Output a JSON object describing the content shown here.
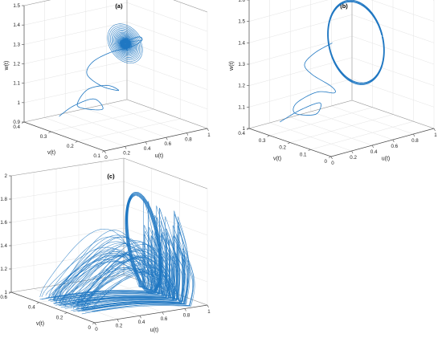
{
  "figure": {
    "line_color": "#1f77c2"
  },
  "chart_data": [
    {
      "id": "a",
      "title": "(a)",
      "type": "line",
      "projection": "3d",
      "xlabel": "u(t)",
      "ylabel": "v(t)",
      "zlabel": "w(t)",
      "xlim": [
        0,
        1
      ],
      "ylim": [
        0.1,
        0.4
      ],
      "zlim": [
        0.9,
        1.5
      ],
      "xticks": [
        "0",
        "0.2",
        "0.4",
        "0.6",
        "0.8",
        "1"
      ],
      "yticks": [
        "0.1",
        "0.2",
        "0.3",
        "0.4"
      ],
      "zticks": [
        "0.9",
        "1",
        "1.1",
        "1.2",
        "1.3",
        "1.4",
        "1.5"
      ],
      "xtick_values": [
        0,
        0.2,
        0.4,
        0.6,
        0.8,
        1
      ],
      "ytick_values": [
        0.1,
        0.2,
        0.3,
        0.4
      ],
      "ztick_values": [
        0.9,
        1,
        1.1,
        1.2,
        1.3,
        1.4,
        1.5
      ],
      "grid": true,
      "behavior": "spiral to fixed point",
      "fixed_point": {
        "u": 0.62,
        "v": 0.26,
        "w": 1.3
      },
      "series": [
        {
          "u": [
            0.08,
            0.25,
            0.42,
            0.4,
            0.2,
            0.1,
            0.28,
            0.5,
            0.58,
            0.42,
            0.3,
            0.38,
            0.56,
            0.7,
            0.78,
            0.72,
            0.6
          ],
          "v": [
            0.3,
            0.31,
            0.3,
            0.26,
            0.25,
            0.24,
            0.27,
            0.28,
            0.27,
            0.27,
            0.28,
            0.29,
            0.29,
            0.27,
            0.26,
            0.25,
            0.26
          ],
          "w": [
            0.97,
            1.0,
            1.02,
            0.99,
            1.02,
            1.06,
            1.1,
            1.09,
            1.06,
            1.1,
            1.17,
            1.22,
            1.25,
            1.27,
            1.3,
            1.33,
            1.31
          ]
        }
      ]
    },
    {
      "id": "b",
      "title": "(b)",
      "type": "line",
      "projection": "3d",
      "xlabel": "u(t)",
      "ylabel": "v(t)",
      "zlabel": "w(t)",
      "xlim": [
        0,
        1
      ],
      "ylim": [
        0,
        0.4
      ],
      "zlim": [
        1,
        1.6
      ],
      "xticks": [
        "0",
        "0.2",
        "0.4",
        "0.6",
        "0.8",
        "1"
      ],
      "yticks": [
        "0",
        "0.1",
        "0.2",
        "0.3",
        "0.4"
      ],
      "zticks": [
        "1",
        "1.1",
        "1.2",
        "1.3",
        "1.4",
        "1.5",
        "1.6"
      ],
      "xtick_values": [
        0,
        0.2,
        0.4,
        0.6,
        0.8,
        1
      ],
      "ytick_values": [
        0,
        0.1,
        0.2,
        0.3,
        0.4
      ],
      "ztick_values": [
        1,
        1.1,
        1.2,
        1.3,
        1.4,
        1.5,
        1.6
      ],
      "grid": true,
      "behavior": "limit cycle",
      "series": [
        {
          "u": [
            0.1,
            0.3,
            0.45,
            0.35,
            0.15,
            0.18,
            0.4,
            0.55,
            0.5,
            0.35,
            0.3,
            0.4,
            0.55
          ],
          "v": [
            0.3,
            0.3,
            0.28,
            0.25,
            0.25,
            0.26,
            0.27,
            0.26,
            0.25,
            0.27,
            0.28,
            0.28,
            0.27
          ],
          "w": [
            1.05,
            1.08,
            1.1,
            1.07,
            1.1,
            1.14,
            1.16,
            1.14,
            1.18,
            1.25,
            1.3,
            1.34,
            1.37
          ]
        }
      ],
      "limit_cycle": {
        "u_center": 0.72,
        "v_center": 0.24,
        "w_center": 1.36,
        "u_radius": 0.25,
        "w_radius": 0.17
      }
    },
    {
      "id": "c",
      "title": "(c)",
      "type": "line",
      "projection": "3d",
      "xlabel": "u(t)",
      "ylabel": "v(t)",
      "zlabel": "w(t)",
      "xlim": [
        0,
        1
      ],
      "ylim": [
        0,
        0.6
      ],
      "zlim": [
        1,
        2
      ],
      "xticks": [
        "0",
        "0.2",
        "0.4",
        "0.6",
        "0.8",
        "1"
      ],
      "yticks": [
        "0",
        "0.2",
        "0.4",
        "0.6"
      ],
      "zticks": [
        "1",
        "1.2",
        "1.4",
        "1.6",
        "1.8",
        "2"
      ],
      "xtick_values": [
        0,
        0.2,
        0.4,
        0.6,
        0.8,
        1
      ],
      "ytick_values": [
        0,
        0.2,
        0.4,
        0.6
      ],
      "ztick_values": [
        1,
        1.2,
        1.4,
        1.6,
        1.8,
        2
      ],
      "grid": true,
      "behavior": "chaotic attractor",
      "attractor_region": {
        "u_range": [
          0.05,
          0.95
        ],
        "v_range": [
          0.1,
          0.5
        ],
        "w_range": [
          1.0,
          1.8
        ]
      }
    }
  ]
}
